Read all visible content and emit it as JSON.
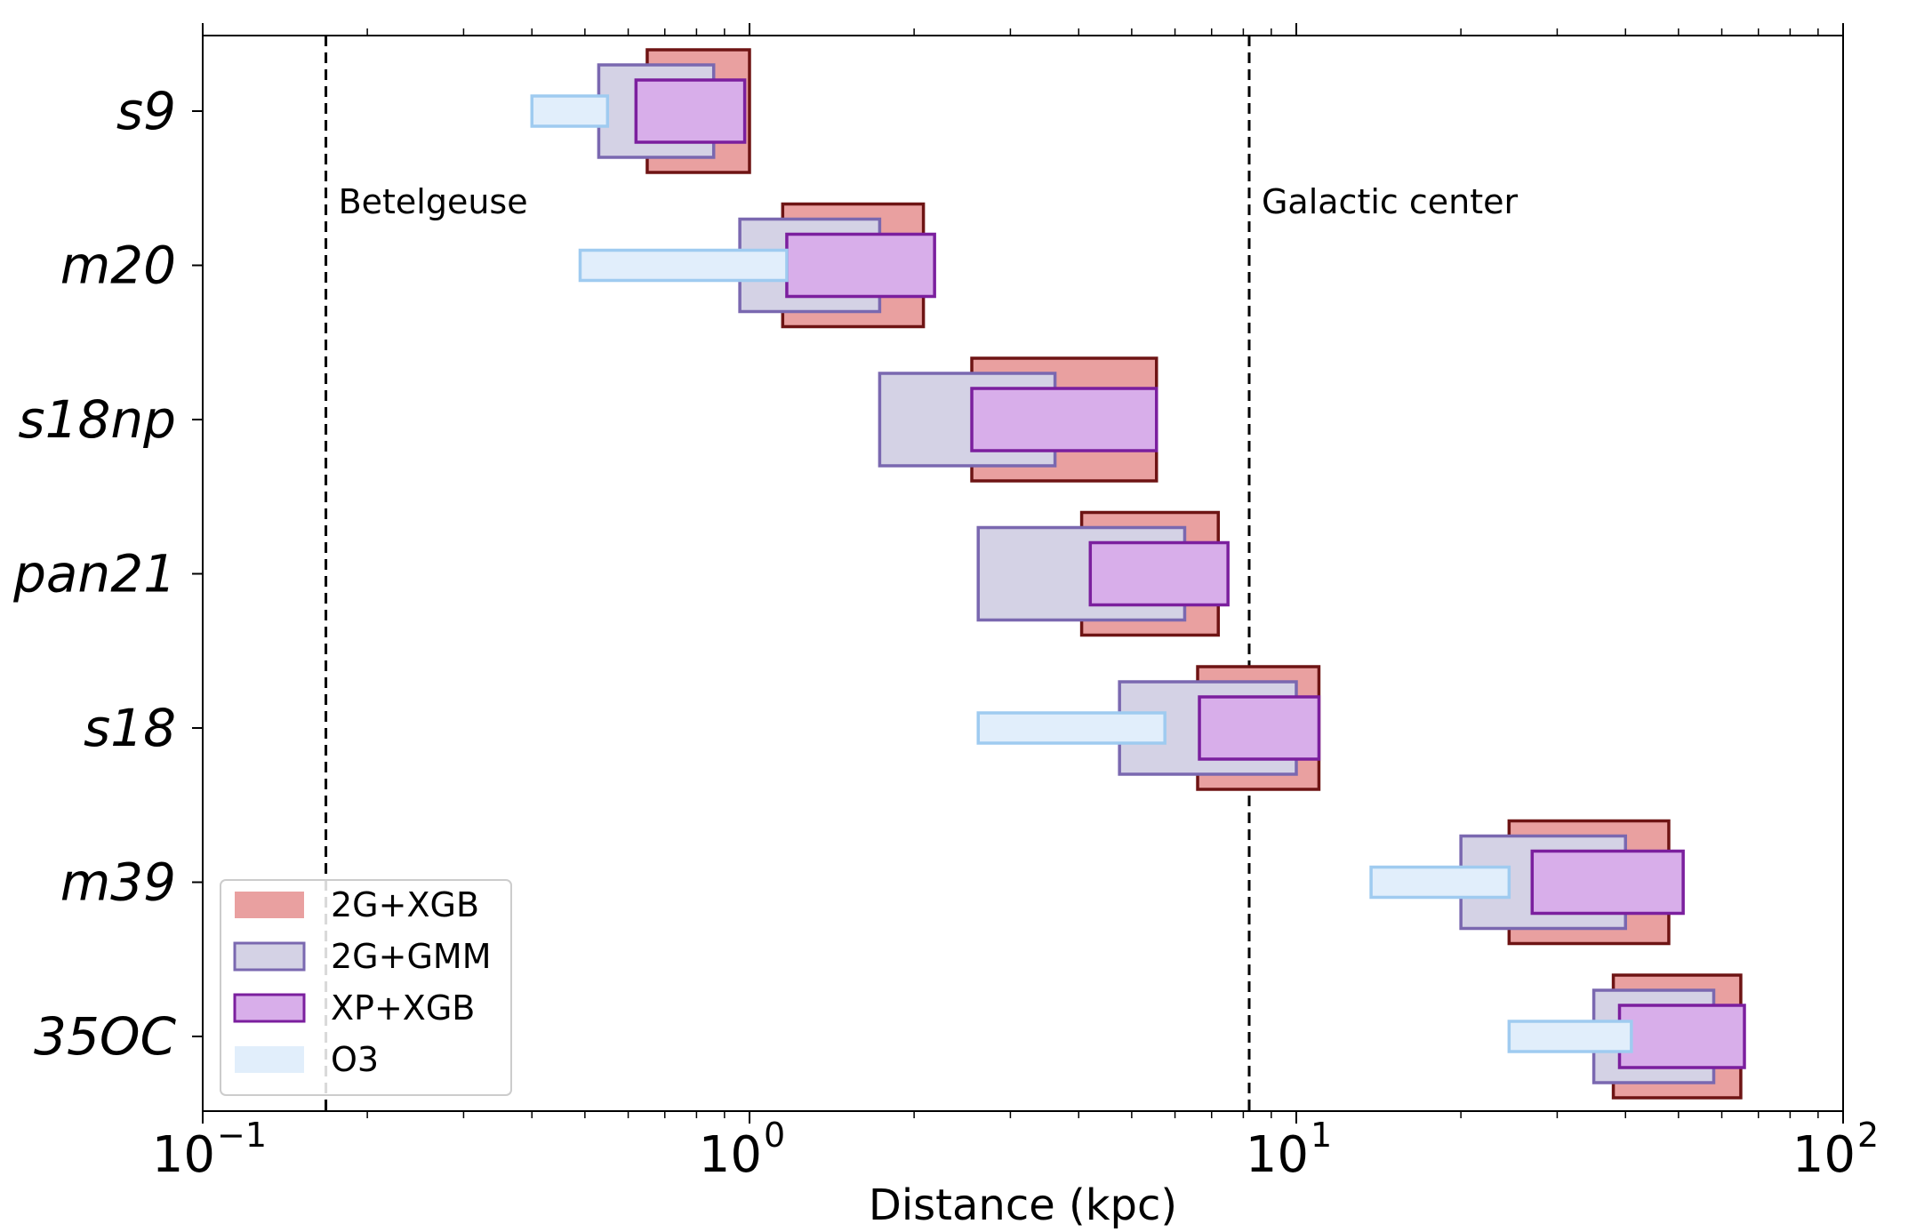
{
  "chart_data": {
    "type": "bar",
    "subtype": "horizontal-range (floating bars), log x-axis",
    "xlabel": "Distance (kpc)",
    "xscale": "log",
    "xlim": [
      0.1,
      100
    ],
    "xticks": [
      {
        "base": "10",
        "exp": "−1",
        "value": 0.1
      },
      {
        "base": "10",
        "exp": "0",
        "value": 1
      },
      {
        "base": "10",
        "exp": "1",
        "value": 10
      },
      {
        "base": "10",
        "exp": "2",
        "value": 100
      }
    ],
    "categories": [
      {
        "label": "s9"
      },
      {
        "label": "m20"
      },
      {
        "label": "s18np"
      },
      {
        "label": "pan21"
      },
      {
        "label": "s18"
      },
      {
        "label": "m39"
      },
      {
        "label": "35OC"
      }
    ],
    "series": [
      {
        "name": "2G+XGB",
        "fill": "#e9a0a0",
        "stroke": "#6e1414",
        "ranges": [
          [
            0.65,
            1.0
          ],
          [
            1.15,
            2.08
          ],
          [
            2.55,
            5.55
          ],
          [
            4.05,
            7.2
          ],
          [
            6.6,
            11.0
          ],
          [
            24.5,
            48.0
          ],
          [
            38.0,
            65.0
          ]
        ]
      },
      {
        "name": "2G+GMM",
        "fill": "#d4d2e5",
        "stroke": "#7a68b0",
        "ranges": [
          [
            0.53,
            0.86
          ],
          [
            0.96,
            1.73
          ],
          [
            1.73,
            3.62
          ],
          [
            2.62,
            6.25
          ],
          [
            4.75,
            10.0
          ],
          [
            20.0,
            40.0
          ],
          [
            35.0,
            58.0
          ]
        ]
      },
      {
        "name": "XP+XGB",
        "fill": "#d8aeea",
        "stroke": "#7b1f9e",
        "ranges": [
          [
            0.62,
            0.98
          ],
          [
            1.17,
            2.18
          ],
          [
            2.55,
            5.55
          ],
          [
            4.2,
            7.5
          ],
          [
            6.65,
            11.0
          ],
          [
            27.0,
            51.0
          ],
          [
            39.0,
            66.0
          ]
        ]
      },
      {
        "name": "O3",
        "fill": "#e1eefb",
        "stroke": "#9fcbf0",
        "ranges": [
          [
            0.4,
            0.55
          ],
          [
            0.49,
            1.17
          ],
          null,
          null,
          [
            2.62,
            5.75
          ],
          [
            13.7,
            24.5
          ],
          [
            24.5,
            41.0
          ]
        ]
      }
    ],
    "reference_lines": [
      {
        "label": "Betelgeuse",
        "x": 0.168,
        "style": "dashed"
      },
      {
        "label": "Galactic center",
        "x": 8.2,
        "style": "dashed"
      }
    ],
    "legend": {
      "placement": "lower-left",
      "entries": [
        "2G+XGB",
        "2G+GMM",
        "XP+XGB",
        "O3"
      ]
    }
  }
}
